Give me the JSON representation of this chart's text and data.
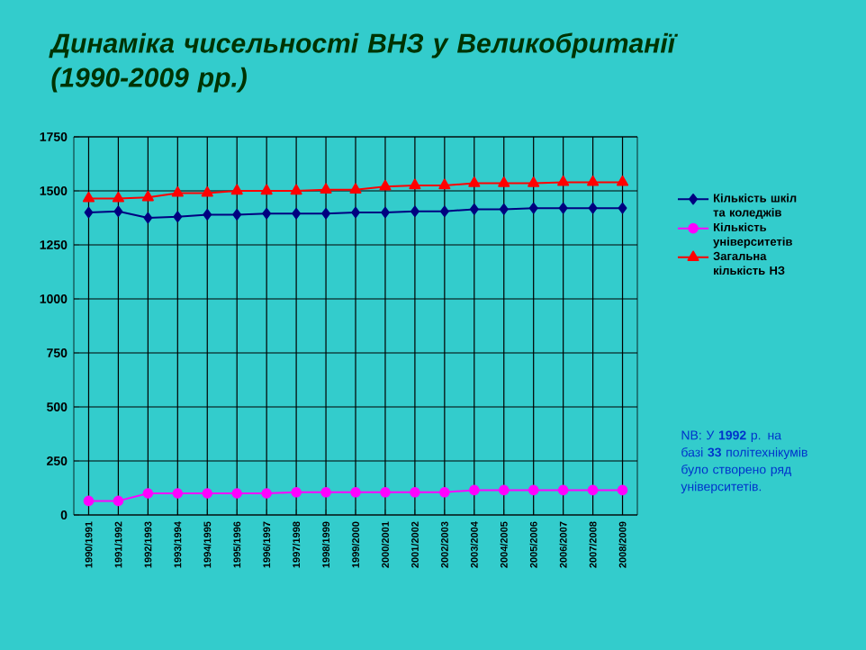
{
  "chart_data": {
    "type": "line",
    "title": "Динаміка чисельності ВНЗ у Великобританії (1990-2009 рр.)",
    "categories": [
      "1990/1991",
      "1991/1992",
      "1992/1993",
      "1993/1994",
      "1994/1995",
      "1995/1996",
      "1996/1997",
      "1997/1998",
      "1998/1999",
      "1999/2000",
      "2000/2001",
      "2001/2002",
      "2002/2003",
      "2003/2004",
      "2004/2005",
      "2005/2006",
      "2006/2007",
      "2007/2008",
      "2008/2009"
    ],
    "series": [
      {
        "name": "Кількість шкіл та коледжів",
        "color": "#000080",
        "marker": "diamond",
        "values": [
          1400,
          1405,
          1375,
          1380,
          1390,
          1390,
          1395,
          1395,
          1395,
          1400,
          1400,
          1405,
          1405,
          1415,
          1415,
          1420,
          1420,
          1420,
          1420
        ]
      },
      {
        "name": "Кількість університетів",
        "color": "#ff00ff",
        "marker": "circle",
        "values": [
          65,
          65,
          100,
          100,
          100,
          100,
          100,
          105,
          105,
          105,
          105,
          105,
          105,
          115,
          115,
          115,
          115,
          115,
          115
        ]
      },
      {
        "name": "Загальна кількість НЗ",
        "color": "#ff0000",
        "marker": "triangle",
        "values": [
          1465,
          1465,
          1470,
          1490,
          1490,
          1500,
          1500,
          1500,
          1505,
          1505,
          1520,
          1525,
          1525,
          1535,
          1535,
          1535,
          1540,
          1540,
          1540
        ]
      }
    ],
    "ylim": [
      0,
      1750
    ],
    "yticks": [
      0,
      250,
      500,
      750,
      1000,
      1250,
      1500,
      1750
    ],
    "grid": true,
    "legend": "right",
    "annotations": [
      "NB: У **1992** р. на базі **33** політехнікумів було створено ряд університетів."
    ]
  }
}
